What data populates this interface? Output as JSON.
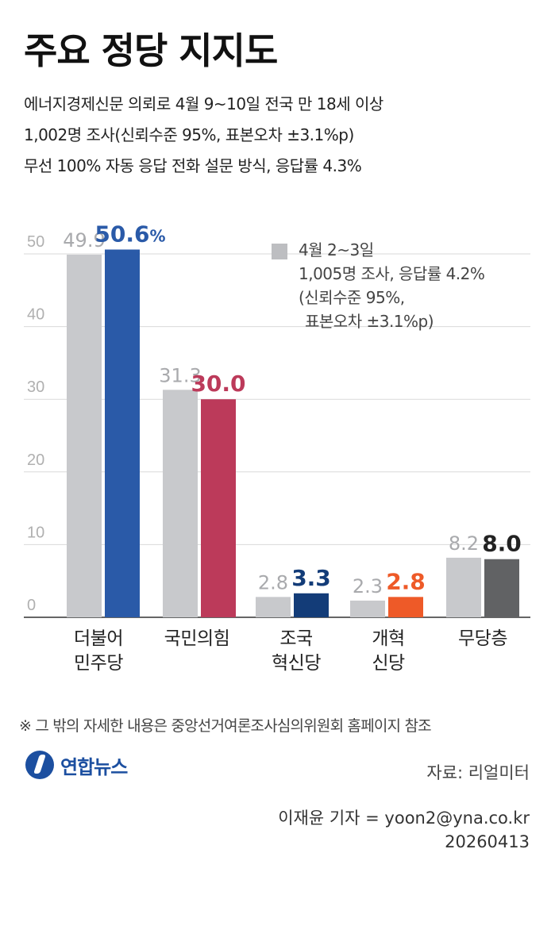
{
  "header": {
    "title": "주요 정당 지지도",
    "subtitle_lines": [
      "에너지경제신문 의뢰로 4월 9~10일 전국 만 18세 이상",
      "1,002명 조사(신뢰수준 95%, 표본오차 ±3.1%p)",
      "무선 100% 자동 응답 전화 설문 방식, 응답률 4.3%"
    ]
  },
  "legend": {
    "lines": [
      "4월 2~3일",
      "1,005명 조사, 응답률 4.2%",
      "(신뢰수준 95%,",
      "표본오차 ±3.1%p)"
    ],
    "swatch_color": "#bdbec1"
  },
  "chart_data": {
    "type": "bar",
    "categories": [
      [
        "더불어",
        "민주당"
      ],
      [
        "국민의힘"
      ],
      [
        "조국",
        "혁신당"
      ],
      [
        "개혁",
        "신당"
      ],
      [
        "무당층"
      ]
    ],
    "series": [
      {
        "name": "4월 2~3일",
        "values": [
          49.9,
          31.3,
          2.8,
          2.3,
          8.2
        ],
        "labels": [
          "49.9",
          "31.3",
          "2.8",
          "2.3",
          "8.2"
        ],
        "colors": [
          "#c8c9cc",
          "#c8c9cc",
          "#c8c9cc",
          "#c8c9cc",
          "#c8c9cc"
        ],
        "label_color": "#a9aaad"
      },
      {
        "values": [
          50.6,
          30.0,
          3.3,
          2.8,
          8.0
        ],
        "labels": [
          "50.6",
          "30.0",
          "3.3",
          "2.8",
          "8.0"
        ],
        "colors": [
          "#2a5aa8",
          "#bc3a5a",
          "#133c78",
          "#ee5a28",
          "#616264"
        ],
        "label_colors": [
          "#2a5aa8",
          "#bc3a5a",
          "#133c78",
          "#ee5a28",
          "#222222"
        ]
      }
    ],
    "first_value_suffix": "%",
    "yticks": [
      0,
      10,
      20,
      30,
      40,
      50
    ],
    "ylim": [
      0,
      50
    ],
    "grid": true
  },
  "footer": {
    "footnote": "※ 그 밖의 자세한 내용은 중앙선거여론조사심의위원회 홈페이지 참조",
    "logo_text": "연합뉴스",
    "source": "자료: 리얼미터",
    "reporter": "이재윤 기자 = yoon2@yna.co.kr",
    "date": "20260413"
  }
}
